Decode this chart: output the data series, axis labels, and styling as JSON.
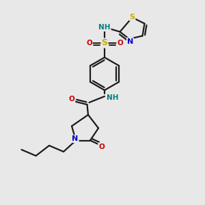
{
  "bg_color": "#e8e8e8",
  "atom_colors": {
    "C": "#000000",
    "N": "#0000cc",
    "O": "#cc0000",
    "S": "#ccaa00",
    "H": "#008080"
  },
  "bond_color": "#1a1a1a",
  "bond_width": 1.6,
  "figsize": [
    3.0,
    3.0
  ],
  "dpi": 100
}
